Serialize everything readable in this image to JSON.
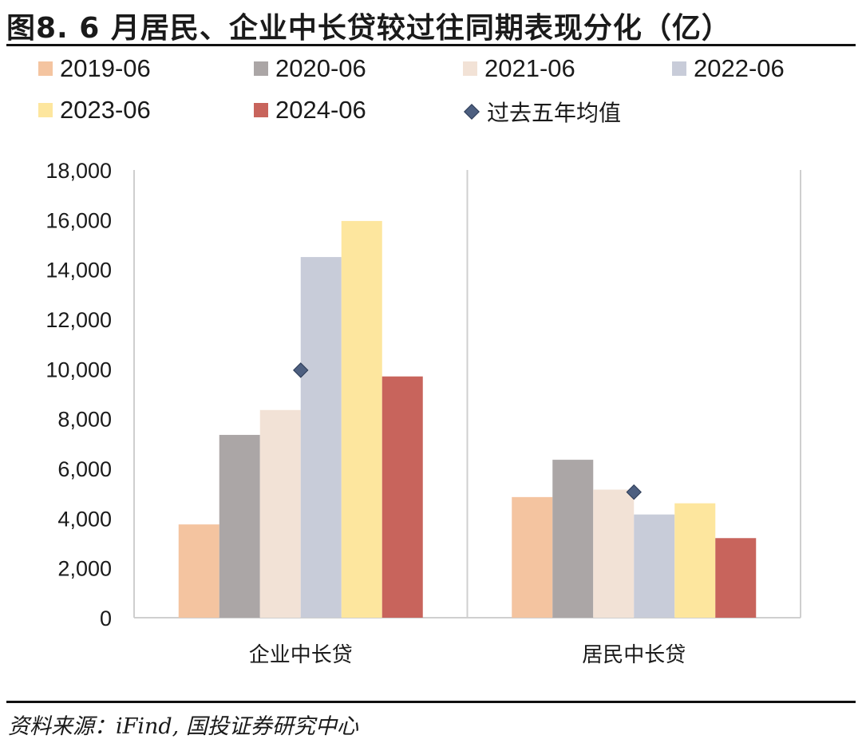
{
  "figure": {
    "title": "图8. 6 月居民、企业中长贷较过往同期表现分化（亿）",
    "source": "资料来源：iFind, 国投证券研究中心"
  },
  "chart_data": {
    "type": "bar",
    "title": "图8. 6 月居民、企业中长贷较过往同期表现分化（亿）",
    "xlabel": "",
    "ylabel": "",
    "ylim": [
      0,
      18000
    ],
    "yticks": [
      0,
      2000,
      4000,
      6000,
      8000,
      10000,
      12000,
      14000,
      16000,
      18000
    ],
    "ytick_labels": [
      "0",
      "2,000",
      "4,000",
      "6,000",
      "8,000",
      "10,000",
      "12,000",
      "14,000",
      "16,000",
      "18,000"
    ],
    "categories": [
      "企业中长贷",
      "居民中长贷"
    ],
    "series": [
      {
        "name": "2019-06",
        "color": "#f4c4a0",
        "values": [
          3750,
          4850
        ]
      },
      {
        "name": "2020-06",
        "color": "#aba6a6",
        "values": [
          7350,
          6350
        ]
      },
      {
        "name": "2021-06",
        "color": "#f2e2d6",
        "values": [
          8350,
          5150
        ]
      },
      {
        "name": "2022-06",
        "color": "#c8ccd9",
        "values": [
          14500,
          4150
        ]
      },
      {
        "name": "2023-06",
        "color": "#fde69e",
        "values": [
          15950,
          4600
        ]
      },
      {
        "name": "2024-06",
        "color": "#c8645c",
        "values": [
          9700,
          3200
        ]
      }
    ],
    "markers": {
      "name": "过去五年均值",
      "color": "#4d5f80",
      "shape": "diamond",
      "values": [
        9950,
        5050
      ]
    },
    "legend_position": "top"
  }
}
